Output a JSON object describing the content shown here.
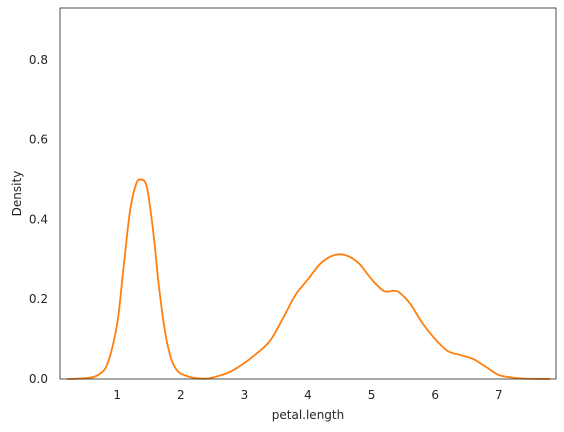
{
  "chart_data": {
    "type": "line",
    "title": "",
    "xlabel": "petal.length",
    "ylabel": "Density",
    "xlim": [
      0.1,
      7.9
    ],
    "ylim": [
      0.0,
      0.93
    ],
    "grid": false,
    "legend": "none",
    "xticks": [
      1,
      2,
      3,
      4,
      5,
      6,
      7
    ],
    "xtick_labels": [
      "1",
      "2",
      "3",
      "4",
      "5",
      "6",
      "7"
    ],
    "yticks": [
      0.0,
      0.2,
      0.4,
      0.6,
      0.8
    ],
    "ytick_labels": [
      "0.0",
      "0.2",
      "0.4",
      "0.6",
      "0.8"
    ],
    "series": [
      {
        "color": "#ff7f0e",
        "x": [
          0.22,
          0.5,
          0.7,
          0.85,
          1.0,
          1.1,
          1.2,
          1.3,
          1.38,
          1.45,
          1.5,
          1.58,
          1.65,
          1.75,
          1.85,
          1.95,
          2.05,
          2.2,
          2.4,
          2.6,
          2.8,
          3.0,
          3.2,
          3.4,
          3.6,
          3.8,
          4.0,
          4.2,
          4.4,
          4.6,
          4.8,
          5.0,
          5.2,
          5.4,
          5.6,
          5.8,
          6.0,
          6.2,
          6.4,
          6.6,
          6.8,
          7.0,
          7.2,
          7.4,
          7.8
        ],
        "y": [
          0.0,
          0.002,
          0.01,
          0.04,
          0.14,
          0.28,
          0.42,
          0.49,
          0.5,
          0.49,
          0.45,
          0.35,
          0.24,
          0.12,
          0.05,
          0.02,
          0.01,
          0.003,
          0.001,
          0.008,
          0.02,
          0.04,
          0.065,
          0.095,
          0.15,
          0.21,
          0.25,
          0.29,
          0.31,
          0.31,
          0.29,
          0.25,
          0.22,
          0.22,
          0.19,
          0.14,
          0.1,
          0.07,
          0.06,
          0.05,
          0.03,
          0.01,
          0.004,
          0.001,
          0.0
        ]
      }
    ]
  }
}
